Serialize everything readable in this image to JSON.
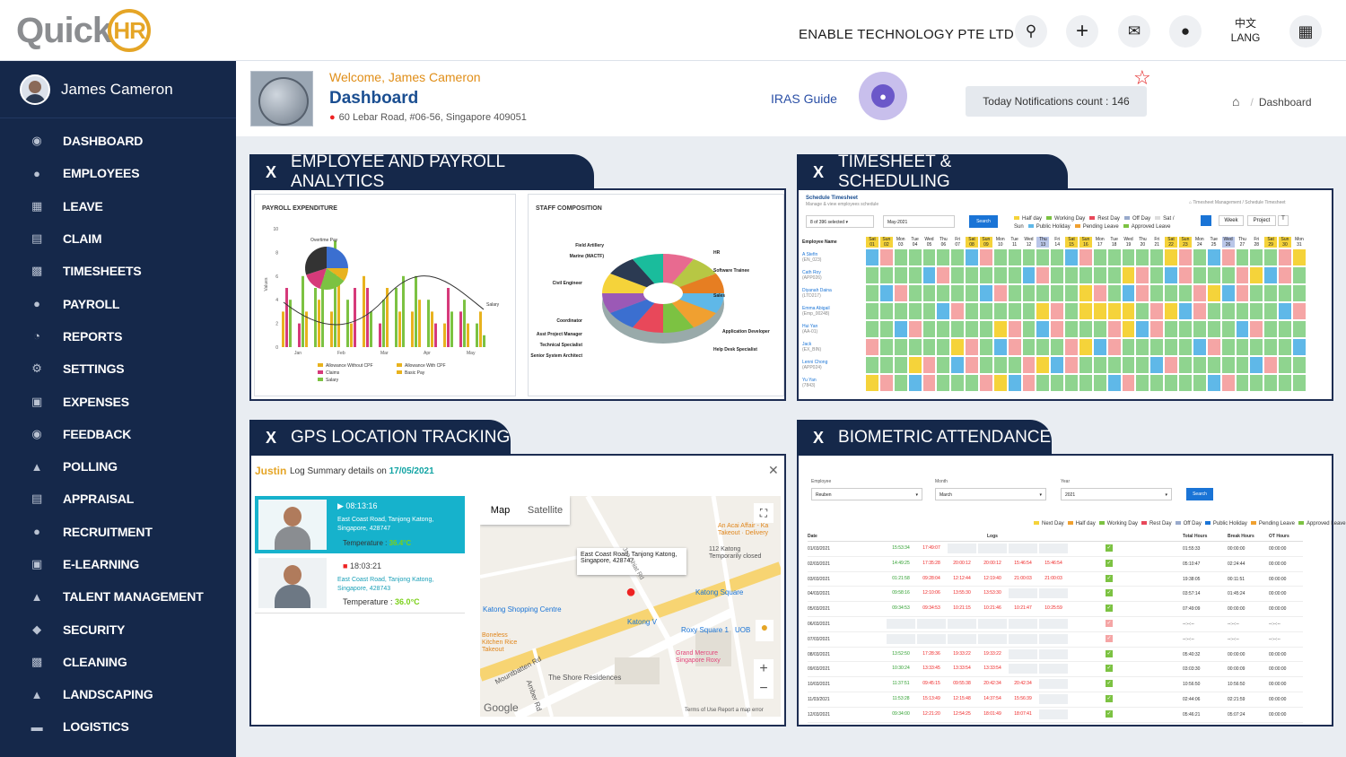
{
  "topbar": {
    "logo_text": "Quick",
    "logo_badge": "HR",
    "company": "ENABLE TECHNOLOGY PTE LTD",
    "lang_top": "中文",
    "lang_bottom": "LANG",
    "icons": [
      "search-icon",
      "plus-icon",
      "mail-icon",
      "bell-icon",
      "apps-grid-icon"
    ]
  },
  "sidebar": {
    "user_name": "James Cameron",
    "items": [
      {
        "label": "DASHBOARD",
        "icon": "dashboard-icon"
      },
      {
        "label": "EMPLOYEES",
        "icon": "users-icon"
      },
      {
        "label": "LEAVE",
        "icon": "calendar-icon"
      },
      {
        "label": "CLAIM",
        "icon": "document-icon"
      },
      {
        "label": "TIMESHEETS",
        "icon": "timesheet-icon"
      },
      {
        "label": "PAYROLL",
        "icon": "money-icon"
      },
      {
        "label": "REPORTS",
        "icon": "pie-icon"
      },
      {
        "label": "SETTINGS",
        "icon": "cogs-icon"
      },
      {
        "label": "EXPENSES",
        "icon": "wallet-icon"
      },
      {
        "label": "FEEDBACK",
        "icon": "chat-icon"
      },
      {
        "label": "POLLING",
        "icon": "thumbs-up-icon"
      },
      {
        "label": "APPRAISAL",
        "icon": "appraisal-icon"
      },
      {
        "label": "RECRUITMENT",
        "icon": "recruit-icon"
      },
      {
        "label": "E-LEARNING",
        "icon": "monitor-icon"
      },
      {
        "label": "TALENT MANAGEMENT",
        "icon": "person-icon"
      },
      {
        "label": "SECURITY",
        "icon": "shield-icon"
      },
      {
        "label": "CLEANING",
        "icon": "cleaning-icon"
      },
      {
        "label": "LANDSCAPING",
        "icon": "landscape-icon"
      },
      {
        "label": "LOGISTICS",
        "icon": "truck-icon"
      }
    ]
  },
  "header": {
    "welcome": "Welcome, James Cameron",
    "title": "Dashboard",
    "address": "60 Lebar Road, #06-56, Singapore 409051",
    "iras_guide": "IRAS Guide",
    "notifications": "Today Notifications count : 146",
    "breadcrumb_current": "Dashboard"
  },
  "panels": {
    "analytics": {
      "tab": "EMPLOYEE AND PAYROLL ANALYTICS",
      "payroll_title": "PAYROLL EXPENDITURE",
      "staff_title": "STAFF COMPOSITION",
      "y_label": "Values",
      "pie_label": "Overtime Pay",
      "salary_label": "Salary",
      "months": [
        "Jan",
        "Feb",
        "Mar",
        "Apr",
        "May"
      ],
      "y_ticks": [
        "10",
        "8",
        "6",
        "4",
        "2",
        "0"
      ],
      "legend": [
        "Allowance Without CPF",
        "Claims",
        "Salary",
        "Allowance With CPF",
        "Basic Pay"
      ],
      "donut_labels_left": [
        "Field Artillery",
        "Marine (MACTF)",
        "Civil Engineer",
        "Coordinator",
        "Asst Project Manager",
        "Technical Specialist",
        "Senior System Architect"
      ],
      "donut_labels_right": [
        "HR",
        "Software Trainee",
        "Sales",
        "Application Developer",
        "Help Desk Specialist"
      ]
    },
    "timesheet": {
      "tab": "TIMESHEET & SCHEDULING",
      "title": "Schedule Timesheet",
      "subtitle": "Manage & view employees schedule",
      "select": "8 of 396 selected",
      "month": "May-2021",
      "search": "Search",
      "crumb": "Timesheet Management",
      "crumb2": "Schedule Timesheet",
      "week": "Week",
      "project": "Project",
      "legend": [
        "Half day",
        "Working Day",
        "Rest Day",
        "Off Day",
        "Sat / Sun",
        "Public Holiday",
        "Pending Leave",
        "Approved Leave"
      ],
      "col_header": "Employee Name",
      "days": [
        "Sat",
        "Sun",
        "Mon",
        "Tue",
        "Wed",
        "Thu",
        "Fri",
        "Sat",
        "Sun",
        "Mon",
        "Tue",
        "Wed",
        "Thu",
        "Fri",
        "Sat",
        "Sun",
        "Mon",
        "Tue",
        "Wed",
        "Thu",
        "Fri",
        "Sat",
        "Sun",
        "Mon",
        "Tue",
        "Wed",
        "Thu",
        "Fri",
        "Sat",
        "Sun",
        "Mon"
      ],
      "dates": [
        "01",
        "02",
        "03",
        "04",
        "05",
        "06",
        "07",
        "08",
        "09",
        "10",
        "11",
        "12",
        "13",
        "14",
        "15",
        "16",
        "17",
        "18",
        "19",
        "20",
        "21",
        "22",
        "23",
        "24",
        "25",
        "26",
        "27",
        "28",
        "29",
        "30",
        "31"
      ],
      "employees": [
        {
          "name": "A Stefin",
          "id": "(EN_023)"
        },
        {
          "name": "Cath Roy",
          "id": "(APP026)"
        },
        {
          "name": "Diyanah Daina",
          "id": "(LTD217)"
        },
        {
          "name": "Emma Abigail",
          "id": "(Emp_00248)"
        },
        {
          "name": "Hui Yan",
          "id": "(AA-01)"
        },
        {
          "name": "Jack",
          "id": "(EX_BIN)"
        },
        {
          "name": "Lenni Chong",
          "id": "(APP024)"
        },
        {
          "name": "Yu Yan",
          "id": "(7843)"
        }
      ]
    },
    "gps": {
      "tab": "GPS LOCATION TRACKING",
      "name": "Justin",
      "summary": "Log Summary details on",
      "date": "17/05/2021",
      "entries": [
        {
          "time": "08:13:16",
          "address": "East Coast Road, Tanjong Katong, Singapore, 428747",
          "temp_label": "Temperature :",
          "temp": "36.4°C"
        },
        {
          "time": "18:03:21",
          "address": "East Coast Road, Tanjong Katong, Singapore, 428743",
          "temp_label": "Temperature :",
          "temp": "36.0°C"
        }
      ],
      "map_tab": "Map",
      "satellite_tab": "Satellite",
      "popup": "East Coast Road, Tanjong Katong, Singapore, 428747",
      "places": [
        "An Acai Affair - Ka",
        "Takeout · Delivery",
        "112 Katong",
        "Temporarily closed",
        "Katong Square",
        "Katong Shopping Centre",
        "Katong V",
        "Roxy Square 1",
        "UOB",
        "Boneless",
        "Kitchen Rice",
        "Takeout",
        "Grand Mercure",
        "Singapore Roxy",
        "The Shore Residences",
        "Mountbatten Rd",
        "Amber Rd",
        "Joo Chiat Rd"
      ],
      "google": "Google",
      "terms": "Terms of Use",
      "report": "Report a map error"
    },
    "biometric": {
      "tab": "BIOMETRIC ATTENDANCE",
      "employee_label": "Employee",
      "employee_value": "Reuben",
      "month_label": "Month",
      "month_value": "March",
      "year_label": "Year",
      "year_value": "2021",
      "search": "Search",
      "legend": [
        "Next Day",
        "Half day",
        "Working Day",
        "Rest Day",
        "Off Day",
        "Public Holiday",
        "Pending Leave",
        "Approved Leave"
      ],
      "headers": [
        "Date",
        "Logs",
        "Total Hours",
        "Break Hours",
        "OT Hours"
      ],
      "rows": [
        {
          "date": "01/03/2021",
          "logs": [
            "15:53:34",
            "17:49:07",
            "",
            "",
            "",
            ""
          ],
          "total": "01:55:33",
          "break": "00:00:00",
          "ot": "00:00:00"
        },
        {
          "date": "02/03/2021",
          "logs": [
            "14:49:25",
            "17:35:28",
            "20:00:12",
            "20:00:12",
            "15:46:54",
            "15:46:54"
          ],
          "total": "05:10:47",
          "break": "02:24:44",
          "ot": "00:00:00"
        },
        {
          "date": "03/03/2021",
          "logs": [
            "01:21:58",
            "09:28:04",
            "12:12:44",
            "12:19:40",
            "21:00:03",
            "21:00:03"
          ],
          "total": "19:38:05",
          "break": "00:11:51",
          "ot": "00:00:00"
        },
        {
          "date": "04/03/2021",
          "logs": [
            "09:58:16",
            "12:10:06",
            "13:55:30",
            "13:53:30",
            "",
            ""
          ],
          "total": "03:57:14",
          "break": "01:45:24",
          "ot": "00:00:00"
        },
        {
          "date": "05/03/2021",
          "logs": [
            "09:34:53",
            "09:34:53",
            "10:21:15",
            "10:21:46",
            "10:21:47",
            "10:25:59"
          ],
          "total": "07:49:09",
          "break": "00:00:00",
          "ot": "00:00:00"
        },
        {
          "date": "06/03/2021",
          "logs": [
            "",
            "",
            "",
            "",
            "",
            ""
          ],
          "total": "--:--:--",
          "break": "--:--:--",
          "ot": "--:--:--"
        },
        {
          "date": "07/03/2021",
          "logs": [
            "",
            "",
            "",
            "",
            "",
            ""
          ],
          "total": "--:--:--",
          "break": "--:--:--",
          "ot": "--:--:--"
        },
        {
          "date": "08/03/2021",
          "logs": [
            "13:52:50",
            "17:28:36",
            "19:33:22",
            "19:33:22",
            "",
            ""
          ],
          "total": "05:40:32",
          "break": "00:00:00",
          "ot": "00:00:00"
        },
        {
          "date": "09/03/2021",
          "logs": [
            "10:30:24",
            "13:33:45",
            "13:33:54",
            "13:33:54",
            "",
            ""
          ],
          "total": "03:03:30",
          "break": "00:00:09",
          "ot": "00:00:00"
        },
        {
          "date": "10/03/2021",
          "logs": [
            "11:37:51",
            "09:45:15",
            "09:55:38",
            "20:42:34",
            "20:42:34",
            ""
          ],
          "total": "10:56:50",
          "break": "10:56:50",
          "ot": "00:00:00"
        },
        {
          "date": "11/03/2021",
          "logs": [
            "11:53:28",
            "15:13:49",
            "12:15:48",
            "14:37:54",
            "15:56:39",
            ""
          ],
          "total": "02:44:06",
          "break": "02:21:59",
          "ot": "00:00:00"
        },
        {
          "date": "12/03/2021",
          "logs": [
            "09:34:00",
            "12:21:20",
            "12:54:25",
            "18:01:49",
            "18:07:41",
            ""
          ],
          "total": "05:46:21",
          "break": "05:07:24",
          "ot": "00:00:00"
        }
      ]
    }
  },
  "colors": {
    "sidebar": "#15284a",
    "accent": "#1a4e91",
    "welcome": "#e08e18",
    "star": "#e31c1c"
  }
}
